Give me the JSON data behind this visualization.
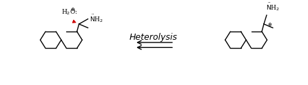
{
  "title": "",
  "background_color": "#ffffff",
  "arrow_label": "Heterolysis",
  "arrow_label_fontsize": 9,
  "arrow_color": "#000000",
  "arrow_label_color": "#000000",
  "fig_width": 4.47,
  "fig_height": 1.24,
  "dpi": 100,
  "bond_color": "#000000",
  "red_arrow_color": "#cc0000",
  "plus_charge_color": "#000000",
  "text_color": "#000000"
}
